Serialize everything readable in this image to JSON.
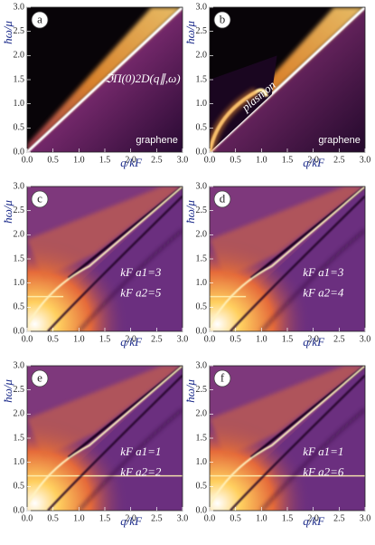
{
  "chart_data": [
    {
      "type": "heatmap",
      "panel": "a",
      "x_label": "q/kF",
      "y_label": "ħω/μ",
      "annotations": [
        "ℑΠ(0)2D(q∥,ω)",
        "graphene"
      ],
      "xlim": [
        0,
        3
      ],
      "ylim": [
        0,
        3
      ],
      "xticks": [
        {
          "value": 0,
          "label": "0.0"
        },
        {
          "value": 0.5,
          "label": "0.5"
        },
        {
          "value": 1,
          "label": "1.0"
        },
        {
          "value": 1.5,
          "label": "1.5"
        },
        {
          "value": 2,
          "label": "2.0"
        },
        {
          "value": 2.5,
          "label": "2.5"
        },
        {
          "value": 3,
          "label": "3.0"
        }
      ],
      "yticks": [
        {
          "value": 0,
          "label": "0.0"
        },
        {
          "value": 0.5,
          "label": "0.5"
        },
        {
          "value": 1,
          "label": "1.0"
        },
        {
          "value": 1.5,
          "label": "1.5"
        },
        {
          "value": 2,
          "label": "2.0"
        },
        {
          "value": 2.5,
          "label": "2.5"
        },
        {
          "value": 3,
          "label": "3.0"
        }
      ]
    },
    {
      "type": "heatmap",
      "panel": "b",
      "x_label": "q/kF",
      "y_label": "ħω/μ",
      "annotations": [
        "plasmon",
        "graphene"
      ],
      "xlim": [
        0,
        3
      ],
      "ylim": [
        0,
        3
      ],
      "xticks": [
        {
          "value": 0,
          "label": "0.0"
        },
        {
          "value": 0.5,
          "label": "0.5"
        },
        {
          "value": 1,
          "label": "1.0"
        },
        {
          "value": 1.5,
          "label": "1.5"
        },
        {
          "value": 2,
          "label": "2.0"
        },
        {
          "value": 2.5,
          "label": "2.5"
        },
        {
          "value": 3,
          "label": "3.0"
        }
      ],
      "yticks": [
        {
          "value": 0,
          "label": "0.0"
        },
        {
          "value": 0.5,
          "label": "0.5"
        },
        {
          "value": 1,
          "label": "1.0"
        },
        {
          "value": 1.5,
          "label": "1.5"
        },
        {
          "value": 2,
          "label": "2.0"
        },
        {
          "value": 2.5,
          "label": "2.5"
        },
        {
          "value": 3,
          "label": "3.0"
        }
      ]
    },
    {
      "type": "heatmap",
      "panel": "c",
      "x_label": "q/kF",
      "y_label": "ħω/μ",
      "annotations": [
        "kF a1=3",
        "kF a2=5"
      ],
      "xlim": [
        0,
        3
      ],
      "ylim": [
        0,
        3
      ],
      "xticks": [
        {
          "value": 0,
          "label": "0.0"
        },
        {
          "value": 0.5,
          "label": "0.5"
        },
        {
          "value": 1,
          "label": "1.0"
        },
        {
          "value": 1.5,
          "label": "1.5"
        },
        {
          "value": 2,
          "label": "2.0"
        },
        {
          "value": 2.5,
          "label": "2.5"
        },
        {
          "value": 3,
          "label": "3.0"
        }
      ],
      "yticks": [
        {
          "value": 0,
          "label": "0.0"
        },
        {
          "value": 0.5,
          "label": "0.5"
        },
        {
          "value": 1,
          "label": "1.0"
        },
        {
          "value": 1.5,
          "label": "1.5"
        },
        {
          "value": 2,
          "label": "2.0"
        },
        {
          "value": 2.5,
          "label": "2.5"
        },
        {
          "value": 3,
          "label": "3.0"
        }
      ]
    },
    {
      "type": "heatmap",
      "panel": "d",
      "x_label": "q/kF",
      "y_label": "ħω/μ",
      "annotations": [
        "kF a1=3",
        "kF a2=4"
      ],
      "xlim": [
        0,
        3
      ],
      "ylim": [
        0,
        3
      ],
      "xticks": [
        {
          "value": 0,
          "label": "0.0"
        },
        {
          "value": 0.5,
          "label": "0.5"
        },
        {
          "value": 1,
          "label": "1.0"
        },
        {
          "value": 1.5,
          "label": "1.5"
        },
        {
          "value": 2,
          "label": "2.0"
        },
        {
          "value": 2.5,
          "label": "2.5"
        },
        {
          "value": 3,
          "label": "3.0"
        }
      ],
      "yticks": [
        {
          "value": 0,
          "label": "0.0"
        },
        {
          "value": 0.5,
          "label": "0.5"
        },
        {
          "value": 1,
          "label": "1.0"
        },
        {
          "value": 1.5,
          "label": "1.5"
        },
        {
          "value": 2,
          "label": "2.0"
        },
        {
          "value": 2.5,
          "label": "2.5"
        },
        {
          "value": 3,
          "label": "3.0"
        }
      ]
    },
    {
      "type": "heatmap",
      "panel": "e",
      "x_label": "q/kF",
      "y_label": "ħω/μ",
      "annotations": [
        "kF a1=1",
        "kF a2=2"
      ],
      "xlim": [
        0,
        3
      ],
      "ylim": [
        0,
        3
      ],
      "xticks": [
        {
          "value": 0,
          "label": "0.0"
        },
        {
          "value": 0.5,
          "label": "0.5"
        },
        {
          "value": 1,
          "label": "1.0"
        },
        {
          "value": 1.5,
          "label": "1.5"
        },
        {
          "value": 2,
          "label": "2.0"
        },
        {
          "value": 2.5,
          "label": "2.5"
        },
        {
          "value": 3,
          "label": "3.0"
        }
      ],
      "yticks": [
        {
          "value": 0,
          "label": "0.0"
        },
        {
          "value": 0.5,
          "label": "0.5"
        },
        {
          "value": 1,
          "label": "1.0"
        },
        {
          "value": 1.5,
          "label": "1.5"
        },
        {
          "value": 2,
          "label": "2.0"
        },
        {
          "value": 2.5,
          "label": "2.5"
        },
        {
          "value": 3,
          "label": "3.0"
        }
      ]
    },
    {
      "type": "heatmap",
      "panel": "f",
      "x_label": "q/kF",
      "y_label": "ħω/μ",
      "annotations": [
        "kF a1=1",
        "kF a2=6"
      ],
      "xlim": [
        0,
        3
      ],
      "ylim": [
        0,
        3
      ],
      "xticks": [
        {
          "value": 0,
          "label": "0.0"
        },
        {
          "value": 0.5,
          "label": "0.5"
        },
        {
          "value": 1,
          "label": "1.0"
        },
        {
          "value": 1.5,
          "label": "1.5"
        },
        {
          "value": 2,
          "label": "2.0"
        },
        {
          "value": 2.5,
          "label": "2.5"
        },
        {
          "value": 3,
          "label": "3.0"
        }
      ],
      "yticks": [
        {
          "value": 0,
          "label": "0.0"
        },
        {
          "value": 0.5,
          "label": "0.5"
        },
        {
          "value": 1,
          "label": "1.0"
        },
        {
          "value": 1.5,
          "label": "1.5"
        },
        {
          "value": 2,
          "label": "2.0"
        },
        {
          "value": 2.5,
          "label": "2.5"
        },
        {
          "value": 3,
          "label": "3.0"
        }
      ]
    }
  ]
}
